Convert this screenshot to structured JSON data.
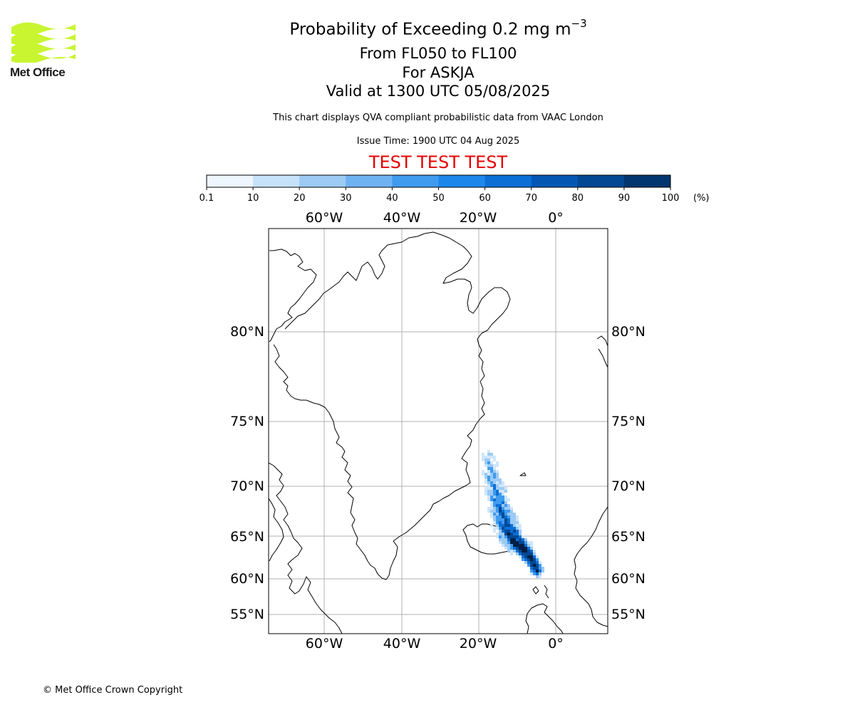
{
  "logo": {
    "text": "Met Office",
    "icon": "met-office-wave-logo",
    "color": "#c8f530"
  },
  "title": {
    "line1": "Probability of Exceeding 0.2 mg m",
    "line1_superscript": "−3",
    "line2": "From FL050 to FL100",
    "line3": "For ASKJA",
    "line4": "Valid at 1300 UTC 05/08/2025"
  },
  "subtitle": {
    "compliance": "This chart displays QVA compliant probabilistic data from VAAC London",
    "issue_time": "Issue Time: 1900 UTC 04 Aug 2025"
  },
  "test_banner": "TEST TEST TEST",
  "test_color": "#e60000",
  "colorbar": {
    "unit": "(%)",
    "ticks": [
      "0.1",
      "10",
      "20",
      "30",
      "40",
      "50",
      "60",
      "70",
      "80",
      "90",
      "100"
    ],
    "colors": [
      "#eef6ff",
      "#c6e2fa",
      "#9ccaf5",
      "#6fb2f2",
      "#3f9bee",
      "#1e87ec",
      "#0b6fd6",
      "#0458b4",
      "#034893",
      "#02366f"
    ]
  },
  "map": {
    "lon_labels": [
      "60°W",
      "40°W",
      "20°W",
      "0°"
    ],
    "lat_labels": [
      "80°N",
      "75°N",
      "70°N",
      "65°N",
      "60°N",
      "55°N"
    ],
    "plume_colors": [
      "#cfe6fb",
      "#9ccaf5",
      "#3f9bee",
      "#0b6fd6",
      "#034893",
      "#021f44"
    ]
  },
  "footer": {
    "copyright": "© Met Office Crown Copyright"
  }
}
